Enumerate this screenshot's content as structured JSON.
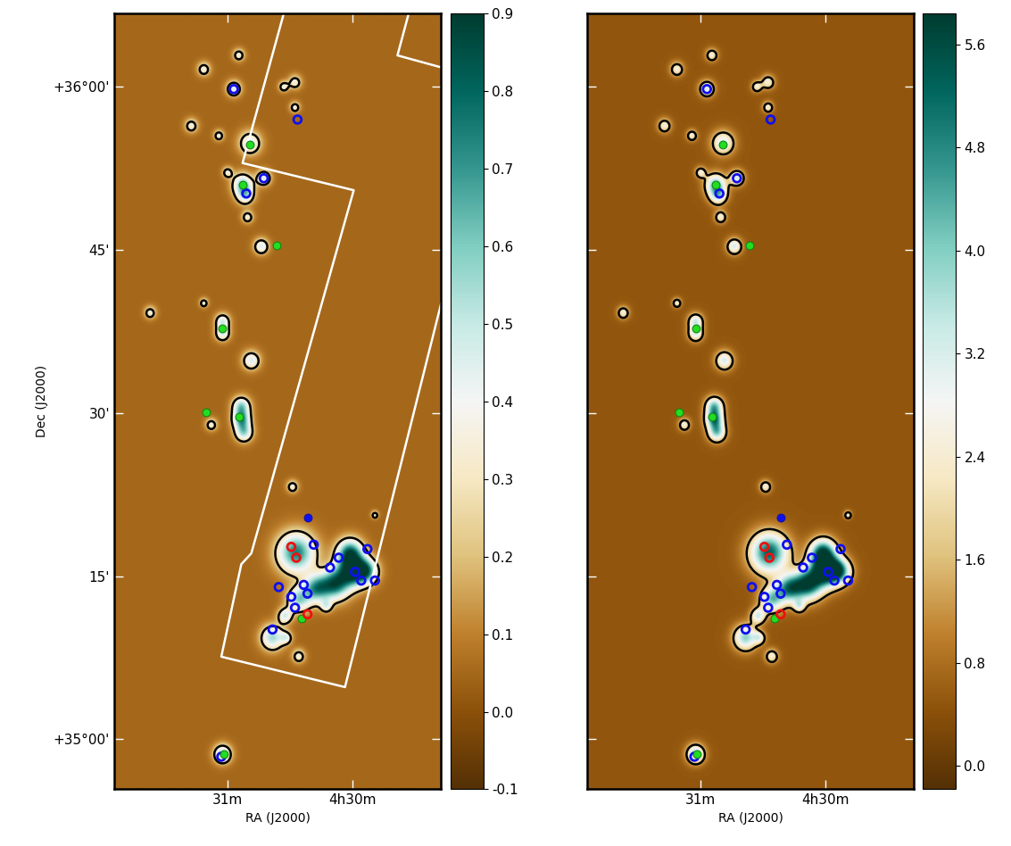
{
  "chart_data": {
    "type": "image",
    "xlabel": "RA (J2000)",
    "ylabel": "Dec (J2000)",
    "xlim": [
      31.907,
      29.293
    ],
    "ylim": [
      -4.6,
      66.75
    ],
    "xticks": [
      {
        "value": 31,
        "label": "31m"
      },
      {
        "value": 30,
        "label": "4h30m"
      }
    ],
    "yticks": [
      {
        "value": 0,
        "label": "+35°00'"
      },
      {
        "value": 15,
        "label": "15'"
      },
      {
        "value": 30,
        "label": "30'"
      },
      {
        "value": 45,
        "label": "45'"
      },
      {
        "value": 60,
        "label": "+36°00'"
      }
    ],
    "panels": [
      {
        "tick_labels": true,
        "background": 0.05,
        "contour_level": 0.25,
        "colorbar": {
          "lim": [
            -0.1,
            0.9
          ],
          "ticks": [
            -0.1,
            {
              "value": 0,
              "label": "0.0"
            },
            0.1,
            0.2,
            0.3,
            0.4,
            0.5,
            0.6,
            0.7,
            0.8,
            0.9
          ]
        },
        "footprint": [
          [
            [
              30.55,
              66.75
            ],
            [
              30.88,
              53.0
            ],
            [
              29.99,
              50.5
            ],
            [
              30.81,
              17.1
            ],
            [
              30.89,
              16.1
            ],
            [
              31.05,
              7.6
            ],
            [
              30.06,
              4.8
            ],
            [
              29.29,
              40.1
            ]
          ],
          [
            [
              29.55,
              66.75
            ],
            [
              29.64,
              62.9
            ],
            [
              29.29,
              61.8
            ]
          ]
        ]
      },
      {
        "tick_labels": "x",
        "background": 0.5,
        "contour_level": 1.6,
        "colorbar": {
          "lim": [
            -0.18,
            5.84
          ],
          "ticks": [
            {
              "value": 0,
              "label": "0.0"
            },
            0.8,
            1.6,
            2.4,
            3.2,
            {
              "value": 4,
              "label": "4.0"
            },
            4.8,
            5.6
          ]
        }
      }
    ],
    "cores": [
      [
        31.19,
        61.6,
        0.45,
        0.3,
        2.0
      ],
      [
        30.91,
        62.9,
        0.4,
        0.3,
        2.0
      ],
      [
        30.95,
        59.8,
        0.5,
        0.4,
        2.7
      ],
      [
        30.55,
        60.0,
        0.35,
        0.3,
        2.0
      ],
      [
        30.46,
        60.4,
        0.45,
        0.3,
        2.0
      ],
      [
        30.46,
        58.1,
        0.35,
        0.3,
        2.0
      ],
      [
        31.29,
        56.4,
        0.45,
        0.3,
        2.0
      ],
      [
        31.07,
        55.5,
        0.35,
        0.3,
        2.0
      ],
      [
        30.82,
        54.8,
        0.75,
        0.4,
        2.7
      ],
      [
        31.0,
        52.1,
        0.35,
        0.3,
        2.0
      ],
      [
        30.88,
        51.0,
        0.7,
        0.5,
        3.4
      ],
      [
        30.86,
        50.0,
        0.6,
        0.4,
        2.7
      ],
      [
        30.71,
        51.6,
        0.5,
        0.4,
        2.7
      ],
      [
        30.84,
        48.0,
        0.4,
        0.3,
        2.0
      ],
      [
        30.73,
        45.3,
        0.5,
        0.4,
        2.7
      ],
      [
        31.04,
        38.4,
        0.5,
        0.4,
        2.7
      ],
      [
        31.04,
        37.3,
        0.5,
        0.4,
        2.7
      ],
      [
        31.62,
        39.2,
        0.4,
        0.3,
        2.0
      ],
      [
        31.19,
        40.1,
        0.3,
        0.3,
        2.0
      ],
      [
        30.81,
        34.8,
        0.6,
        0.4,
        2.7
      ],
      [
        30.89,
        30.6,
        0.6,
        0.5,
        3.4
      ],
      [
        30.89,
        29.4,
        0.6,
        0.6,
        4.1
      ],
      [
        30.87,
        28.2,
        0.6,
        0.5,
        3.4
      ],
      [
        31.13,
        28.9,
        0.4,
        0.3,
        2.0
      ],
      [
        30.48,
        23.2,
        0.4,
        0.3,
        2.0
      ],
      [
        30.45,
        17.1,
        1.3,
        0.7,
        4.8
      ],
      [
        30.02,
        17.1,
        0.9,
        0.7,
        4.8
      ],
      [
        30.0,
        15.4,
        1.0,
        0.8,
        5.4
      ],
      [
        29.89,
        15.4,
        0.8,
        0.6,
        4.1
      ],
      [
        30.14,
        14.2,
        1.0,
        0.7,
        4.8
      ],
      [
        30.29,
        13.8,
        0.9,
        0.6,
        4.1
      ],
      [
        30.43,
        12.8,
        0.8,
        0.5,
        3.4
      ],
      [
        30.54,
        11.3,
        0.5,
        0.4,
        2.7
      ],
      [
        30.64,
        9.3,
        0.8,
        0.5,
        3.4
      ],
      [
        30.21,
        12.2,
        0.4,
        0.3,
        2.0
      ],
      [
        30.53,
        9.3,
        0.4,
        0.3,
        2.0
      ],
      [
        30.43,
        7.6,
        0.45,
        0.3,
        2.0
      ],
      [
        29.82,
        20.6,
        0.25,
        0.3,
        2.0
      ],
      [
        31.04,
        -1.4,
        0.6,
        0.5,
        3.4
      ]
    ],
    "markers": [
      {
        "color": "#1010ee",
        "marker": "ring",
        "points": [
          [
            30.95,
            59.8
          ],
          [
            30.44,
            57.0
          ],
          [
            30.71,
            51.6
          ],
          [
            30.85,
            50.2
          ],
          [
            30.31,
            17.9
          ],
          [
            30.18,
            15.8
          ],
          [
            30.11,
            16.7
          ],
          [
            29.98,
            15.4
          ],
          [
            29.88,
            17.5
          ],
          [
            30.39,
            14.2
          ],
          [
            30.59,
            14.0
          ],
          [
            30.49,
            13.1
          ],
          [
            30.46,
            12.1
          ],
          [
            30.36,
            13.4
          ],
          [
            29.93,
            14.6
          ],
          [
            29.82,
            14.6
          ],
          [
            30.64,
            10.1
          ],
          [
            31.05,
            -1.6
          ]
        ]
      },
      {
        "color": "#1010ee",
        "marker": "dot",
        "points": [
          [
            30.36,
            20.4
          ]
        ]
      },
      {
        "color": "#22dd22",
        "marker": "dot",
        "points": [
          [
            30.82,
            54.7
          ],
          [
            30.88,
            51.0
          ],
          [
            30.61,
            45.4
          ],
          [
            31.04,
            37.8
          ],
          [
            30.91,
            29.7
          ],
          [
            31.17,
            30.1
          ],
          [
            30.41,
            11.1
          ],
          [
            31.03,
            -1.4
          ]
        ]
      },
      {
        "color": "#ee1010",
        "marker": "ring",
        "points": [
          [
            30.49,
            17.7
          ],
          [
            30.45,
            16.7
          ],
          [
            30.36,
            11.5
          ]
        ]
      }
    ]
  }
}
